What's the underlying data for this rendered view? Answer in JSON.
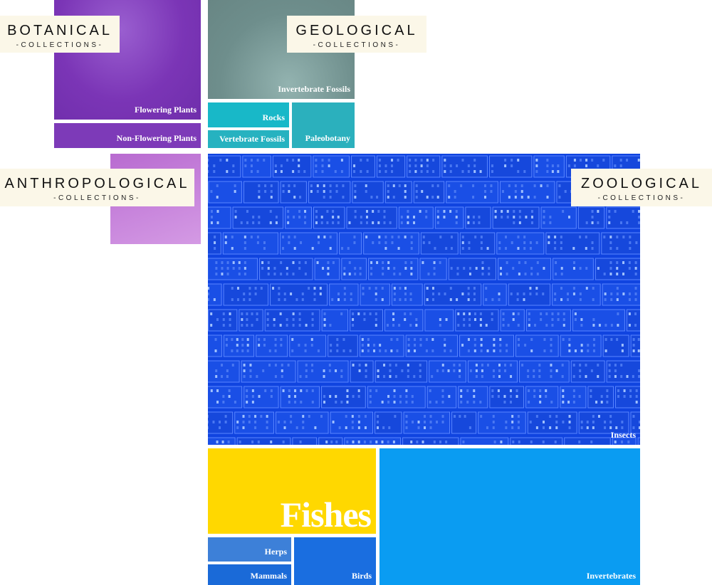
{
  "groups": {
    "botanical": {
      "title": "BOTANICAL",
      "subtitle": "-COLLECTIONS-"
    },
    "geological": {
      "title": "GEOLOGICAL",
      "subtitle": "-COLLECTIONS-"
    },
    "anthropological": {
      "title": "ANTHROPOLOGICAL",
      "subtitle": "-COLLECTIONS-"
    },
    "zoological": {
      "title": "ZOOLOGICAL",
      "subtitle": "-COLLECTIONS-"
    }
  },
  "tiles": {
    "flowering_plants": "Flowering Plants",
    "non_flowering_plants": "Non-Flowering Plants",
    "invertebrate_fossils": "Invertebrate Fossils",
    "rocks": "Rocks",
    "vertebrate_fossils": "Vertebrate Fossils",
    "paleobotany": "Paleobotany",
    "insects": "Insects",
    "fishes": "Fishes",
    "herps": "Herps",
    "mammals": "Mammals",
    "birds": "Birds",
    "invertebrates": "Invertebrates"
  },
  "colors": {
    "botanical": "#7b35b6",
    "anthropological": "#c47fd9",
    "geological_dark": "#6e8e8c",
    "geological_teal": "#26b8c4",
    "insects": "#1044e0",
    "fishes": "#ffd800",
    "herps": "#3d80d8",
    "mammals": "#1a6ad8",
    "birds": "#1a6ee0",
    "invertebrates": "#0a9cf2"
  }
}
